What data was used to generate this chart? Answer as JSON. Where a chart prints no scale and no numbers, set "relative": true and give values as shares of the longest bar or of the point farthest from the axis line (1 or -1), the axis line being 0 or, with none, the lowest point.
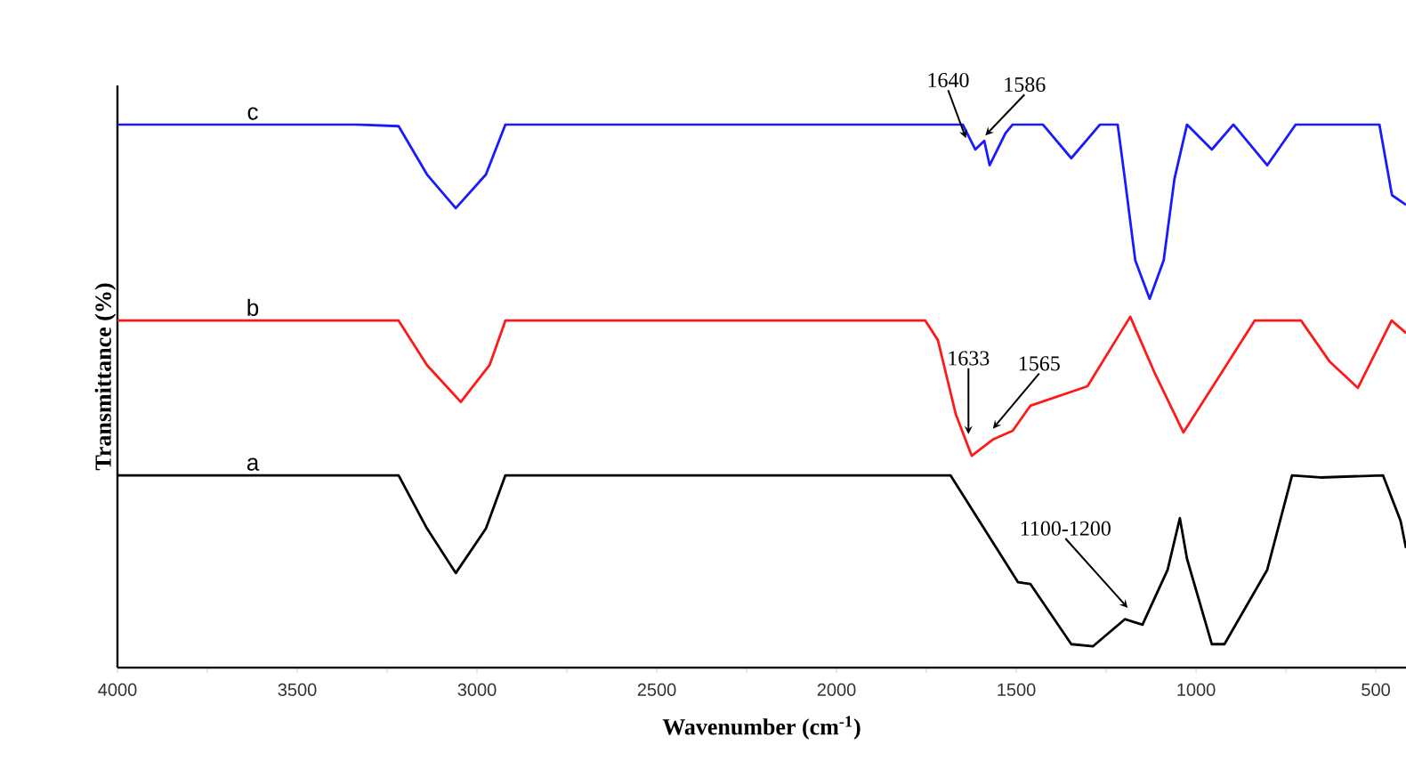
{
  "chart_data": {
    "type": "line",
    "relative": true,
    "xlabel": "Wavenumber (cm$^{-1}$)",
    "ylabel": "Transmittance (%)",
    "xlim": [
      4000,
      416
    ],
    "xticks": [
      4000,
      3500,
      3000,
      2500,
      2000,
      1500,
      1000,
      500
    ],
    "grid": false,
    "legend": false,
    "marker": "none",
    "line_style": "solid",
    "series": [
      {
        "name": "c",
        "color": "#1a1aff",
        "x": [
          4000,
          3337,
          3218,
          3139,
          3059,
          2975,
          2921,
          1649,
          1614,
          1589,
          1574,
          1530,
          1510,
          1426,
          1347,
          1267,
          1218,
          1198,
          1169,
          1129,
          1090,
          1060,
          1025,
          956,
          896,
          802,
          723,
          490,
          455,
          416
        ],
        "values": [
          1.0,
          1.0,
          0.997,
          0.908,
          0.846,
          0.908,
          1.0,
          1.0,
          0.954,
          0.97,
          0.925,
          0.984,
          1.0,
          1.0,
          0.938,
          1.0,
          1.0,
          0.9,
          0.75,
          0.679,
          0.75,
          0.9,
          1.0,
          0.954,
          1.0,
          0.925,
          1.0,
          1.0,
          0.87,
          0.852
        ]
      },
      {
        "name": "b",
        "color": "#ff1a1a",
        "x": [
          4000,
          3218,
          3139,
          3045,
          2965,
          2921,
          1753,
          1718,
          1668,
          1624,
          1565,
          1510,
          1461,
          1302,
          1183,
          1114,
          1035,
          931,
          837,
          708,
          629,
          550,
          456,
          416
        ],
        "values": [
          0.639,
          0.639,
          0.557,
          0.489,
          0.557,
          0.639,
          0.639,
          0.603,
          0.466,
          0.39,
          0.42,
          0.436,
          0.482,
          0.518,
          0.646,
          0.541,
          0.433,
          0.541,
          0.639,
          0.639,
          0.564,
          0.515,
          0.639,
          0.616
        ]
      },
      {
        "name": "a",
        "color": "#000000",
        "x": [
          4000,
          3218,
          3139,
          3059,
          2975,
          2921,
          1683,
          1599,
          1495,
          1461,
          1347,
          1287,
          1198,
          1149,
          1079,
          1045,
          1025,
          956,
          921,
          802,
          733,
          654,
          480,
          431,
          416
        ],
        "values": [
          0.354,
          0.354,
          0.256,
          0.174,
          0.256,
          0.354,
          0.354,
          0.266,
          0.157,
          0.154,
          0.043,
          0.039,
          0.089,
          0.079,
          0.18,
          0.275,
          0.2,
          0.043,
          0.043,
          0.18,
          0.354,
          0.35,
          0.354,
          0.27,
          0.22
        ]
      }
    ],
    "annotations": [
      {
        "text": "1640",
        "x": 1640,
        "y": 0.965
      },
      {
        "text": "1586",
        "x": 1586,
        "y": 0.97
      },
      {
        "text": "1633",
        "x": 1633,
        "y": 0.42
      },
      {
        "text": "1565",
        "x": 1565,
        "y": 0.43
      },
      {
        "text": "1100-1200",
        "x": 1190,
        "y": 0.1
      }
    ]
  }
}
